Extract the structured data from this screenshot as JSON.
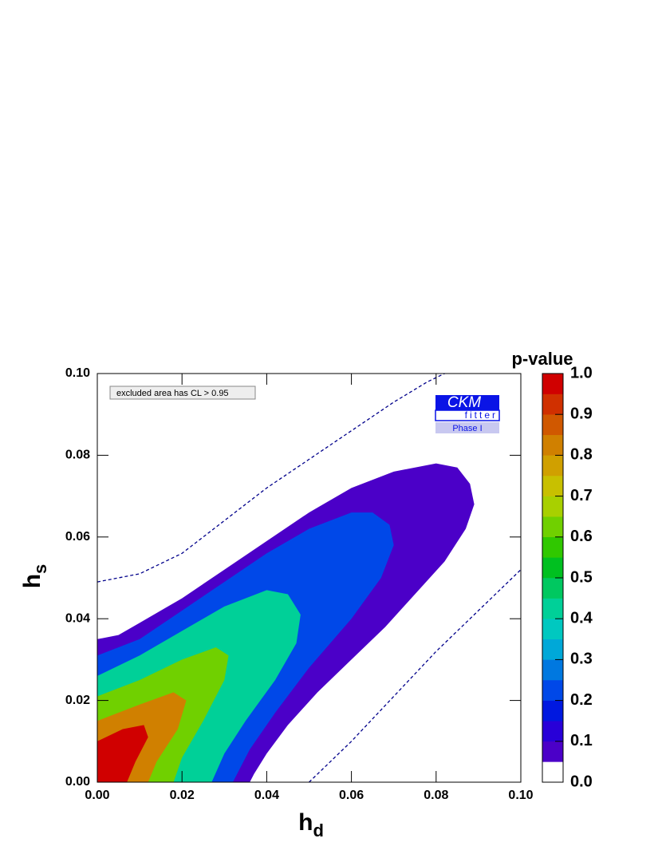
{
  "chart_data": {
    "type": "contour",
    "xlabel": {
      "text": "h",
      "subscript": "d"
    },
    "ylabel": {
      "text": "h",
      "subscript": "s"
    },
    "xlim": [
      0,
      0.1
    ],
    "ylim": [
      0,
      0.1
    ],
    "xticks": [
      {
        "value": 0,
        "label": "0.00"
      },
      {
        "value": 0.02,
        "label": "0.02"
      },
      {
        "value": 0.04,
        "label": "0.04"
      },
      {
        "value": 0.06,
        "label": "0.06"
      },
      {
        "value": 0.08,
        "label": "0.08"
      },
      {
        "value": 0.1,
        "label": "0.10"
      }
    ],
    "yticks": [
      {
        "value": 0,
        "label": "0.00"
      },
      {
        "value": 0.02,
        "label": "0.02"
      },
      {
        "value": 0.04,
        "label": "0.04"
      },
      {
        "value": 0.06,
        "label": "0.06"
      },
      {
        "value": 0.08,
        "label": "0.08"
      },
      {
        "value": 0.1,
        "label": "0.10"
      }
    ],
    "legend_text": "excluded area has CL > 0.95",
    "logo": {
      "top": "CKM",
      "middle": "fitter",
      "bottom": "Phase I"
    },
    "colorbar": {
      "title": "p-value",
      "lim": [
        0,
        1
      ],
      "ticks": [
        {
          "value": 0,
          "label": "0.0"
        },
        {
          "value": 0.1,
          "label": "0.1"
        },
        {
          "value": 0.2,
          "label": "0.2"
        },
        {
          "value": 0.3,
          "label": "0.3"
        },
        {
          "value": 0.4,
          "label": "0.4"
        },
        {
          "value": 0.5,
          "label": "0.5"
        },
        {
          "value": 0.6,
          "label": "0.6"
        },
        {
          "value": 0.7,
          "label": "0.7"
        },
        {
          "value": 0.8,
          "label": "0.8"
        },
        {
          "value": 0.9,
          "label": "0.9"
        },
        {
          "value": 1,
          "label": "1.0"
        }
      ],
      "bounds": [
        0,
        0.05,
        0.1,
        0.15,
        0.2,
        0.25,
        0.3,
        0.35,
        0.4,
        0.45,
        0.5,
        0.55,
        0.6,
        0.65,
        0.7,
        0.75,
        0.8,
        0.85,
        0.9,
        0.95,
        1.0
      ],
      "colors": [
        "#ffffff",
        "#4b00c8",
        "#2800d8",
        "#0018e0",
        "#0048e8",
        "#0078e0",
        "#00a8d8",
        "#00c8c0",
        "#00d098",
        "#00c860",
        "#00c020",
        "#30c800",
        "#70d000",
        "#a8d000",
        "#c8c000",
        "#d0a000",
        "#d08000",
        "#d05800",
        "#d03000",
        "#d00000"
      ]
    },
    "contours": [
      {
        "level": 0.05,
        "x": [
          0,
          0.005,
          0.01,
          0.02,
          0.03,
          0.04,
          0.05,
          0.06,
          0.07,
          0.08,
          0.085,
          0.088,
          0.089,
          0.087,
          0.082,
          0.075,
          0.068,
          0.06,
          0.052,
          0.045,
          0.04,
          0.037,
          0.036,
          0
        ],
        "y": [
          0.035,
          0.036,
          0.039,
          0.045,
          0.052,
          0.059,
          0.066,
          0.072,
          0.076,
          0.078,
          0.077,
          0.073,
          0.068,
          0.062,
          0.054,
          0.046,
          0.038,
          0.03,
          0.022,
          0.014,
          0.007,
          0.002,
          0,
          0
        ]
      },
      {
        "level": 0.2,
        "x": [
          0,
          0.01,
          0.02,
          0.03,
          0.04,
          0.05,
          0.06,
          0.065,
          0.069,
          0.07,
          0.067,
          0.06,
          0.05,
          0.042,
          0.036,
          0.033,
          0.032,
          0
        ],
        "y": [
          0.031,
          0.035,
          0.042,
          0.049,
          0.056,
          0.062,
          0.066,
          0.066,
          0.063,
          0.058,
          0.05,
          0.04,
          0.028,
          0.017,
          0.008,
          0.002,
          0,
          0
        ]
      },
      {
        "level": 0.4,
        "x": [
          0,
          0.01,
          0.02,
          0.03,
          0.04,
          0.045,
          0.048,
          0.047,
          0.042,
          0.035,
          0.03,
          0.027,
          0
        ],
        "y": [
          0.026,
          0.031,
          0.037,
          0.043,
          0.047,
          0.046,
          0.041,
          0.034,
          0.025,
          0.015,
          0.007,
          0,
          0
        ]
      },
      {
        "level": 0.6,
        "x": [
          0,
          0.01,
          0.02,
          0.028,
          0.031,
          0.03,
          0.025,
          0.02,
          0.018,
          0
        ],
        "y": [
          0.021,
          0.025,
          0.03,
          0.033,
          0.031,
          0.025,
          0.015,
          0.006,
          0,
          0
        ]
      },
      {
        "level": 0.8,
        "x": [
          0,
          0.01,
          0.018,
          0.021,
          0.019,
          0.014,
          0.012,
          0
        ],
        "y": [
          0.015,
          0.019,
          0.022,
          0.02,
          0.013,
          0.005,
          0,
          0
        ]
      },
      {
        "level": 0.95,
        "x": [
          0,
          0.006,
          0.011,
          0.012,
          0.009,
          0.007,
          0
        ],
        "y": [
          0.01,
          0.013,
          0.014,
          0.011,
          0.005,
          0,
          0
        ]
      }
    ],
    "dashed_curves": [
      {
        "color": "#00008b",
        "x": [
          0,
          0.01,
          0.02,
          0.03,
          0.04,
          0.05,
          0.06,
          0.07,
          0.078,
          0.082
        ],
        "y": [
          0.049,
          0.051,
          0.056,
          0.064,
          0.072,
          0.079,
          0.086,
          0.093,
          0.098,
          0.1
        ]
      },
      {
        "color": "#00008b",
        "x": [
          0.05,
          0.06,
          0.07,
          0.08,
          0.09,
          0.1
        ],
        "y": [
          0,
          0.01,
          0.021,
          0.032,
          0.042,
          0.052
        ]
      }
    ]
  }
}
